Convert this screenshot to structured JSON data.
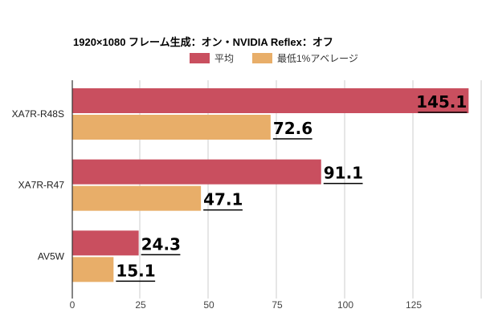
{
  "chart_data": {
    "type": "bar",
    "orientation": "horizontal",
    "title": "1920×1080 フレーム生成：オン・NVIDIA Reflex：オフ",
    "categories": [
      "XA7R-R48S",
      "XA7R-R47",
      "AV5W"
    ],
    "series": [
      {
        "name": "平均",
        "color": "#c94f5f",
        "values": [
          145.1,
          91.1,
          24.3
        ]
      },
      {
        "name": "最低1%アベレージ",
        "color": "#e8ae69",
        "values": [
          72.6,
          47.1,
          15.1
        ]
      }
    ],
    "xlim": [
      0,
      150
    ],
    "xticks": [
      0,
      25,
      50,
      75,
      100,
      125
    ],
    "xlabel": "",
    "ylabel": "",
    "grid": true,
    "legend": "top-center",
    "data_labels": true
  }
}
